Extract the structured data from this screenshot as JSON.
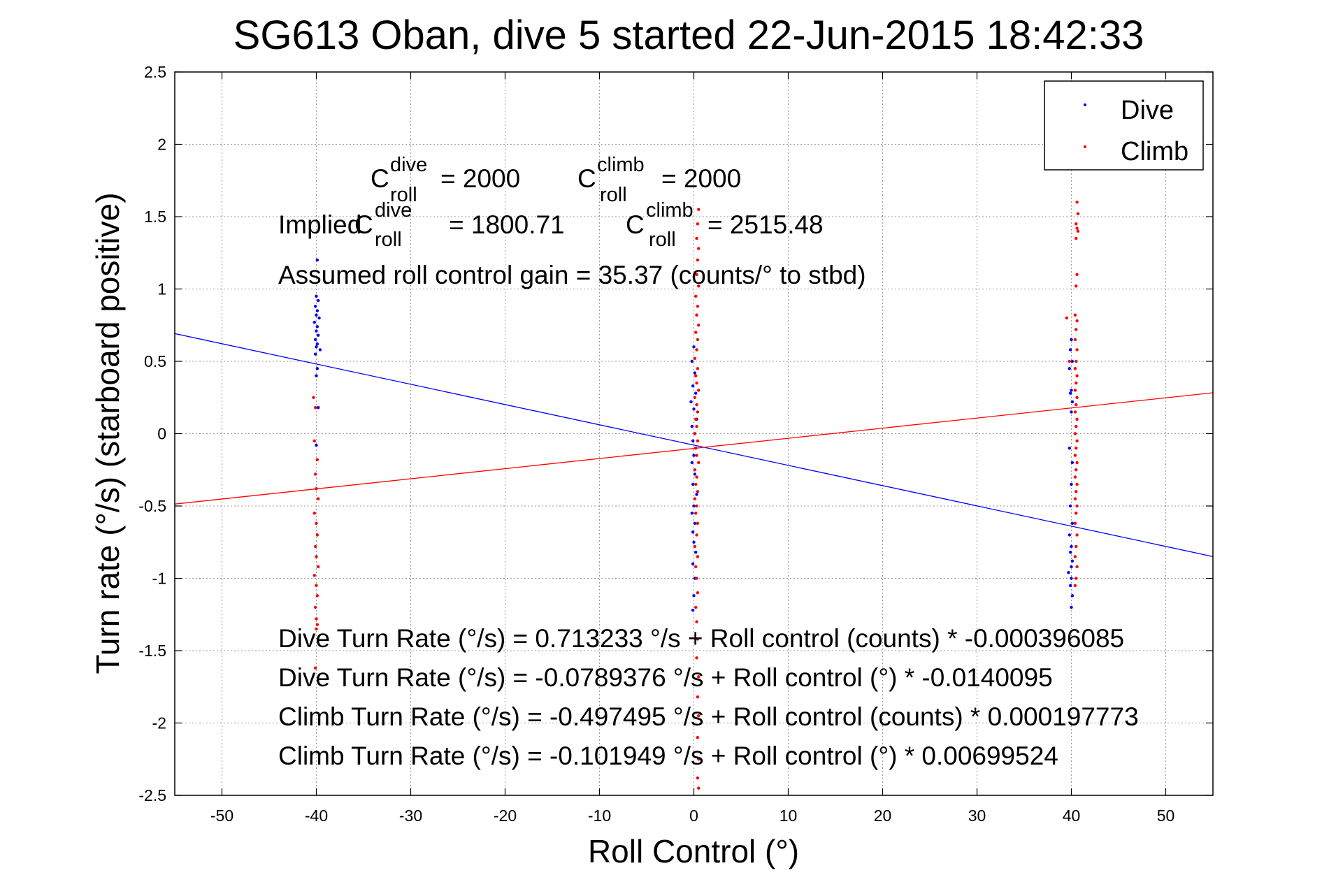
{
  "chart_data": {
    "type": "scatter",
    "title": "SG613 Oban, dive 5 started 22-Jun-2015 18:42:33",
    "xlabel": "Roll Control (°)",
    "ylabel": "Turn rate (°/s)  (starboard positive)",
    "xlim": [
      -55,
      55
    ],
    "ylim": [
      -2.5,
      2.5
    ],
    "xticks": [
      -50,
      -40,
      -30,
      -20,
      -10,
      0,
      10,
      20,
      30,
      40,
      50
    ],
    "yticks": [
      -2.5,
      -2,
      -1.5,
      -1,
      -0.5,
      0,
      0.5,
      1,
      1.5,
      2,
      2.5
    ],
    "grid": true,
    "legend_position": "top-right",
    "series": [
      {
        "name": "Dive",
        "color": "#0000ff",
        "marker": "point",
        "points": [
          [
            -39.9,
            1.2
          ],
          [
            -40.0,
            0.95
          ],
          [
            -39.8,
            0.92
          ],
          [
            -40.1,
            0.88
          ],
          [
            -39.9,
            0.85
          ],
          [
            -40.0,
            0.82
          ],
          [
            -39.7,
            0.8
          ],
          [
            -40.2,
            0.77
          ],
          [
            -39.9,
            0.74
          ],
          [
            -40.0,
            0.71
          ],
          [
            -39.8,
            0.68
          ],
          [
            -40.1,
            0.65
          ],
          [
            -39.9,
            0.62
          ],
          [
            -40.0,
            0.6
          ],
          [
            -39.6,
            0.58
          ],
          [
            -40.1,
            0.55
          ],
          [
            -39.9,
            0.45
          ],
          [
            -40.0,
            0.4
          ],
          [
            -39.8,
            0.18
          ],
          [
            -40.0,
            -0.08
          ],
          [
            0.0,
            0.6
          ],
          [
            -0.2,
            0.5
          ],
          [
            0.1,
            0.42
          ],
          [
            -0.1,
            0.33
          ],
          [
            0.2,
            0.28
          ],
          [
            -0.3,
            0.22
          ],
          [
            0.0,
            0.17
          ],
          [
            0.3,
            0.1
          ],
          [
            -0.2,
            0.05
          ],
          [
            0.1,
            0.0
          ],
          [
            -0.1,
            -0.05
          ],
          [
            0.2,
            -0.1
          ],
          [
            0.0,
            -0.15
          ],
          [
            -0.2,
            -0.2
          ],
          [
            0.1,
            -0.28
          ],
          [
            -0.1,
            -0.35
          ],
          [
            0.3,
            -0.42
          ],
          [
            0.0,
            -0.5
          ],
          [
            -0.2,
            -0.55
          ],
          [
            0.1,
            -0.62
          ],
          [
            -0.1,
            -0.68
          ],
          [
            0.0,
            -0.75
          ],
          [
            0.2,
            -0.82
          ],
          [
            -0.1,
            -0.9
          ],
          [
            0.1,
            -1.0
          ],
          [
            0.0,
            -1.12
          ],
          [
            -0.1,
            -1.22
          ],
          [
            40.0,
            0.65
          ],
          [
            39.9,
            0.58
          ],
          [
            40.1,
            0.5
          ],
          [
            39.8,
            0.45
          ],
          [
            40.0,
            0.3
          ],
          [
            39.9,
            0.28
          ],
          [
            40.1,
            0.22
          ],
          [
            40.0,
            0.15
          ],
          [
            39.8,
            -0.1
          ],
          [
            40.1,
            -0.2
          ],
          [
            40.0,
            -0.35
          ],
          [
            39.9,
            -0.5
          ],
          [
            40.1,
            -0.62
          ],
          [
            39.8,
            -0.7
          ],
          [
            40.0,
            -0.78
          ],
          [
            39.9,
            -0.82
          ],
          [
            40.1,
            -0.88
          ],
          [
            40.0,
            -0.92
          ],
          [
            39.7,
            -0.96
          ],
          [
            40.0,
            -1.0
          ],
          [
            39.9,
            -1.05
          ],
          [
            40.1,
            -1.12
          ],
          [
            40.0,
            -1.2
          ]
        ],
        "fit": {
          "intercept": -0.0789376,
          "slope": -0.0140095
        }
      },
      {
        "name": "Climb",
        "color": "#ff0000",
        "marker": "point",
        "points": [
          [
            -40.3,
            0.25
          ],
          [
            -40.1,
            0.18
          ],
          [
            -40.2,
            -0.05
          ],
          [
            -39.9,
            -0.18
          ],
          [
            -40.1,
            -0.28
          ],
          [
            -40.0,
            -0.38
          ],
          [
            -39.8,
            -0.45
          ],
          [
            -40.2,
            -0.55
          ],
          [
            -40.0,
            -0.62
          ],
          [
            -39.9,
            -0.7
          ],
          [
            -40.1,
            -0.78
          ],
          [
            -40.0,
            -0.85
          ],
          [
            -39.8,
            -0.92
          ],
          [
            -40.2,
            -0.98
          ],
          [
            -40.0,
            -1.05
          ],
          [
            -39.9,
            -1.12
          ],
          [
            -40.1,
            -1.2
          ],
          [
            -40.0,
            -1.28
          ],
          [
            -39.9,
            -1.32
          ],
          [
            -40.0,
            -1.35
          ],
          [
            -40.1,
            -1.62
          ],
          [
            0.5,
            1.55
          ],
          [
            0.4,
            1.45
          ],
          [
            0.3,
            1.35
          ],
          [
            0.5,
            1.28
          ],
          [
            0.4,
            1.2
          ],
          [
            0.3,
            1.1
          ],
          [
            0.5,
            1.02
          ],
          [
            0.2,
            0.95
          ],
          [
            0.4,
            0.88
          ],
          [
            0.3,
            0.82
          ],
          [
            0.5,
            0.75
          ],
          [
            0.2,
            0.7
          ],
          [
            0.4,
            0.65
          ],
          [
            0.3,
            0.58
          ],
          [
            0.1,
            0.52
          ],
          [
            0.4,
            0.45
          ],
          [
            0.2,
            0.4
          ],
          [
            0.3,
            0.35
          ],
          [
            0.5,
            0.3
          ],
          [
            0.1,
            0.25
          ],
          [
            0.3,
            0.2
          ],
          [
            0.4,
            0.15
          ],
          [
            0.2,
            0.1
          ],
          [
            0.3,
            0.05
          ],
          [
            0.1,
            0.0
          ],
          [
            0.4,
            -0.05
          ],
          [
            0.2,
            -0.1
          ],
          [
            0.3,
            -0.15
          ],
          [
            0.5,
            -0.2
          ],
          [
            0.1,
            -0.25
          ],
          [
            0.3,
            -0.3
          ],
          [
            0.2,
            -0.35
          ],
          [
            0.4,
            -0.4
          ],
          [
            0.1,
            -0.45
          ],
          [
            0.3,
            -0.5
          ],
          [
            0.2,
            -0.55
          ],
          [
            0.4,
            -0.62
          ],
          [
            0.3,
            -0.7
          ],
          [
            0.1,
            -0.78
          ],
          [
            0.4,
            -0.85
          ],
          [
            0.2,
            -0.92
          ],
          [
            0.3,
            -1.0
          ],
          [
            0.4,
            -1.1
          ],
          [
            0.2,
            -1.2
          ],
          [
            0.3,
            -1.3
          ],
          [
            0.4,
            -1.42
          ],
          [
            0.3,
            -1.55
          ],
          [
            0.5,
            -1.68
          ],
          [
            0.4,
            -1.82
          ],
          [
            0.5,
            -1.95
          ],
          [
            0.4,
            -2.1
          ],
          [
            0.5,
            -2.25
          ],
          [
            0.4,
            -2.38
          ],
          [
            0.5,
            -2.45
          ],
          [
            40.6,
            1.6
          ],
          [
            40.7,
            1.52
          ],
          [
            40.5,
            1.45
          ],
          [
            40.6,
            1.42
          ],
          [
            40.7,
            1.4
          ],
          [
            40.5,
            1.35
          ],
          [
            40.6,
            1.1
          ],
          [
            40.5,
            1.02
          ],
          [
            40.4,
            0.82
          ],
          [
            40.6,
            0.78
          ],
          [
            40.5,
            0.72
          ],
          [
            40.4,
            0.65
          ],
          [
            40.6,
            0.58
          ],
          [
            40.5,
            0.5
          ],
          [
            40.4,
            0.45
          ],
          [
            40.6,
            0.4
          ],
          [
            40.5,
            0.35
          ],
          [
            40.4,
            0.3
          ],
          [
            40.6,
            0.25
          ],
          [
            40.5,
            0.2
          ],
          [
            40.4,
            0.15
          ],
          [
            40.6,
            0.1
          ],
          [
            40.5,
            0.05
          ],
          [
            40.4,
            0.0
          ],
          [
            40.6,
            -0.05
          ],
          [
            40.5,
            -0.1
          ],
          [
            40.4,
            -0.15
          ],
          [
            40.6,
            -0.2
          ],
          [
            40.5,
            -0.25
          ],
          [
            40.4,
            -0.3
          ],
          [
            40.6,
            -0.35
          ],
          [
            40.5,
            -0.4
          ],
          [
            40.4,
            -0.45
          ],
          [
            40.6,
            -0.5
          ],
          [
            40.5,
            -0.55
          ],
          [
            40.4,
            -0.62
          ],
          [
            40.6,
            -0.7
          ],
          [
            40.5,
            -0.78
          ],
          [
            40.4,
            -0.85
          ],
          [
            40.6,
            -0.92
          ],
          [
            40.5,
            -1.0
          ],
          [
            40.4,
            -1.05
          ],
          [
            39.5,
            0.8
          ],
          [
            39.8,
            0.5
          ]
        ],
        "fit": {
          "intercept": -0.101949,
          "slope": 0.00699524
        }
      }
    ],
    "annotations": {
      "c_roll_dive": {
        "base": "C",
        "sup": "dive",
        "sub": "roll",
        "value": "= 2000"
      },
      "c_roll_climb": {
        "base": "C",
        "sup": "climb",
        "sub": "roll",
        "value": "= 2000"
      },
      "implied_prefix": "Implied",
      "implied_dive": {
        "base": "C",
        "sup": "dive",
        "sub": "roll",
        "value": "= 1800.71"
      },
      "implied_climb": {
        "base": "C",
        "sup": "climb",
        "sub": "roll",
        "value": "= 2515.48"
      },
      "gain": "Assumed roll control gain = 35.37 (counts/° to stbd)",
      "eq1": "Dive Turn Rate (°/s) = 0.713233 °/s + Roll control (counts) * -0.000396085",
      "eq2": "Dive Turn Rate (°/s) = -0.0789376 °/s + Roll control (°) * -0.0140095",
      "eq3": "Climb Turn Rate (°/s) = -0.497495 °/s + Roll control (counts) * 0.000197773",
      "eq4": "Climb Turn Rate (°/s) = -0.101949 °/s + Roll control (°) * 0.00699524"
    }
  }
}
